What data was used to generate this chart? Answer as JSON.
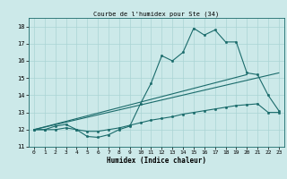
{
  "title": "Courbe de l'humidex pour Ste (34)",
  "xlabel": "Humidex (Indice chaleur)",
  "xlim": [
    -0.5,
    23.5
  ],
  "ylim": [
    11,
    18.5
  ],
  "yticks": [
    11,
    12,
    13,
    14,
    15,
    16,
    17,
    18
  ],
  "xticks": [
    0,
    1,
    2,
    3,
    4,
    5,
    6,
    7,
    8,
    9,
    10,
    11,
    12,
    13,
    14,
    15,
    16,
    17,
    18,
    19,
    20,
    21,
    22,
    23
  ],
  "bg_color": "#cce9e9",
  "grid_color": "#aad4d4",
  "line_color": "#1a6b6b",
  "line1_x": [
    0,
    1,
    2,
    3,
    4,
    5,
    6,
    7,
    8,
    9,
    10,
    11,
    12,
    13,
    14,
    15,
    16,
    17,
    18,
    19,
    20,
    21,
    22,
    23
  ],
  "line1_y": [
    12.0,
    12.0,
    12.2,
    12.3,
    12.0,
    11.6,
    11.55,
    11.7,
    12.0,
    12.2,
    13.5,
    14.7,
    16.3,
    16.0,
    16.5,
    17.9,
    17.5,
    17.8,
    17.1,
    17.1,
    15.3,
    15.2,
    14.0,
    13.1
  ],
  "line2_x": [
    0,
    1,
    2,
    3,
    4,
    5,
    6,
    7,
    8,
    9,
    10,
    11,
    12,
    13,
    14,
    15,
    16,
    17,
    18,
    19,
    20,
    21,
    22,
    23
  ],
  "line2_y": [
    12.0,
    12.0,
    12.0,
    12.1,
    12.0,
    11.9,
    11.9,
    12.0,
    12.1,
    12.25,
    12.4,
    12.55,
    12.65,
    12.75,
    12.9,
    13.0,
    13.1,
    13.2,
    13.3,
    13.4,
    13.45,
    13.5,
    13.0,
    13.0
  ],
  "line3_x": [
    0,
    23
  ],
  "line3_y": [
    12.0,
    15.3
  ],
  "line4_x": [
    0,
    20
  ],
  "line4_y": [
    12.0,
    15.2
  ]
}
